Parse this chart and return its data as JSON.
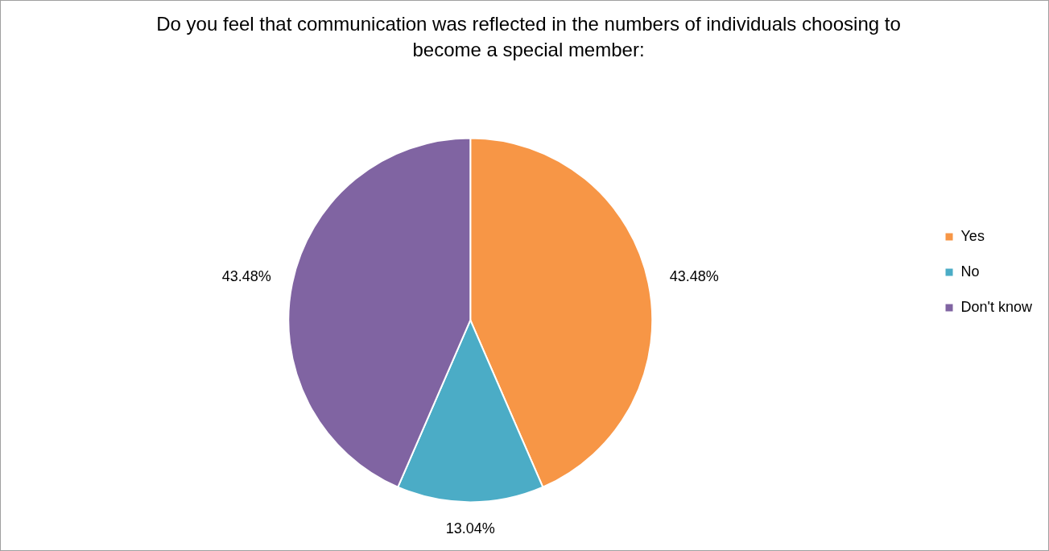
{
  "chart_data": {
    "type": "pie",
    "title": "Do you feel that communication was reflected in the numbers of individuals choosing to become a special member:",
    "categories": [
      "Yes",
      "No",
      "Don't know"
    ],
    "values": [
      43.48,
      13.04,
      43.48
    ],
    "colors": [
      "#f79646",
      "#4bacc6",
      "#8064a2"
    ],
    "value_labels": [
      "43.48%",
      "13.04%",
      "43.48%"
    ],
    "legend": "right"
  }
}
